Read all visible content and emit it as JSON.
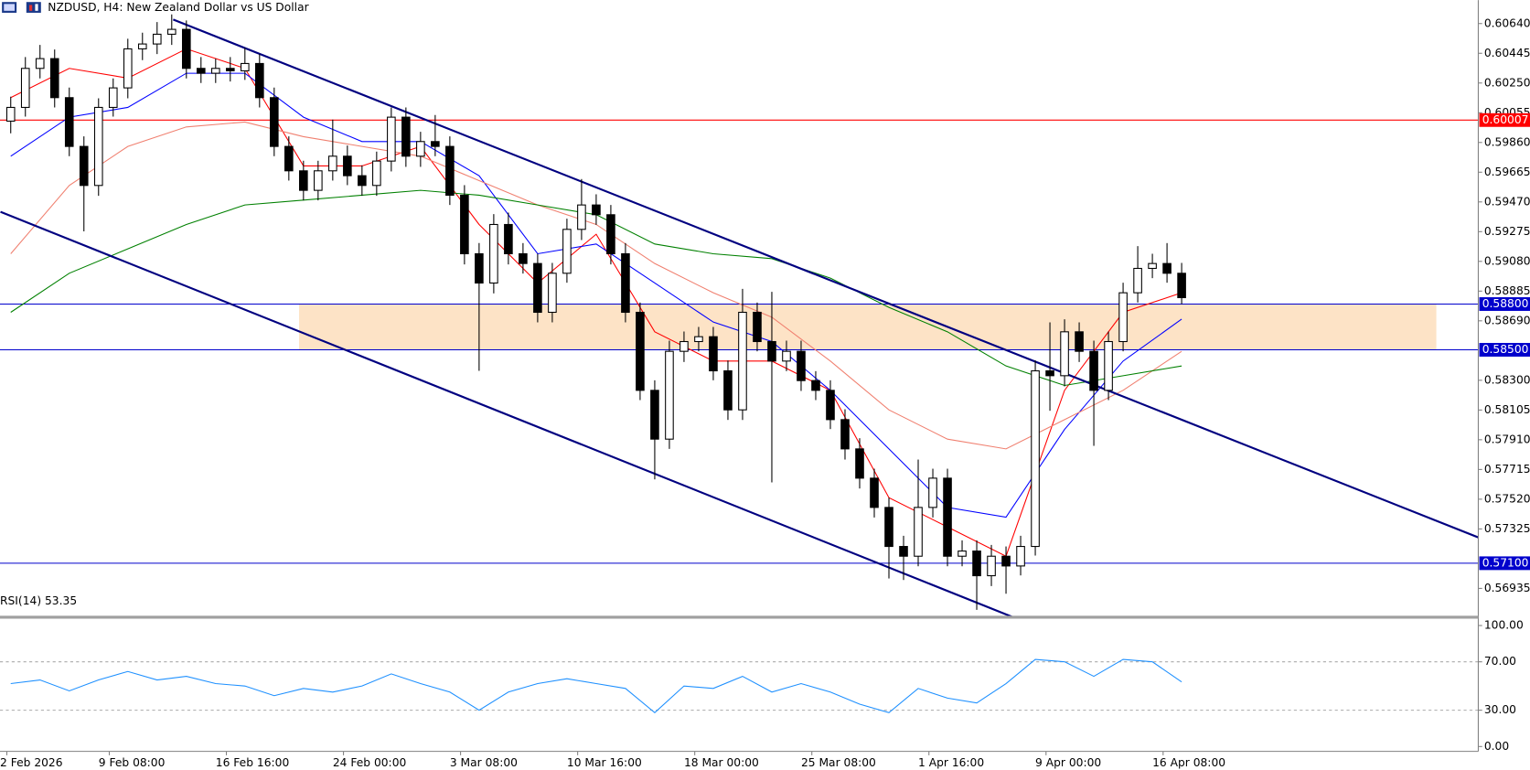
{
  "chart_data": {
    "type": "candlestick",
    "title": "NZDUSD, H4:  New Zealand Dollar vs US Dollar",
    "categories": [
      "2 Feb 2026",
      null,
      null,
      null,
      null,
      null,
      null,
      "9 Feb 08:00",
      null,
      null,
      null,
      null,
      null,
      null,
      null,
      "16 Feb 16:00",
      null,
      null,
      null,
      null,
      null,
      null,
      null,
      "24 Feb 00:00",
      null,
      null,
      null,
      null,
      null,
      null,
      null,
      "3 Mar 08:00",
      null,
      null,
      null,
      null,
      null,
      null,
      null,
      "10 Mar 16:00",
      null,
      null,
      null,
      null,
      null,
      null,
      null,
      "18 Mar 00:00",
      null,
      null,
      null,
      null,
      null,
      null,
      null,
      "25 Mar 08:00",
      null,
      null,
      null,
      null,
      null,
      null,
      null,
      "1 Apr 16:00",
      null,
      null,
      null,
      null,
      null,
      null,
      null,
      "9 Apr 00:00",
      null,
      null,
      null,
      null,
      null,
      null,
      null,
      "16 Apr 08:00",
      null
    ],
    "open": [
      0.6,
      0.6009,
      0.60346,
      0.6041,
      0.60154,
      0.59834,
      0.59578,
      0.6009,
      0.60218,
      0.60474,
      0.60506,
      0.6057,
      0.60602,
      0.60346,
      0.60314,
      0.60346,
      0.6033,
      0.60378,
      0.60154,
      0.59834,
      0.59674,
      0.59546,
      0.59674,
      0.5977,
      0.59642,
      0.59578,
      0.59738,
      0.60026,
      0.5977,
      0.59866,
      0.59834,
      0.59514,
      0.5913,
      0.58938,
      0.59322,
      0.5913,
      0.59066,
      0.58746,
      0.59002,
      0.5929,
      0.5945,
      0.59386,
      0.5913,
      0.58746,
      0.58234,
      0.57914,
      0.5849,
      0.58554,
      0.58586,
      0.58362,
      0.58106,
      0.58746,
      0.58554,
      0.58426,
      0.5849,
      0.58298,
      0.58234,
      0.58042,
      0.5785,
      0.57658,
      0.57466,
      0.5721,
      0.57146,
      0.57466,
      0.57658,
      0.57146,
      0.5718,
      0.57018,
      0.57146,
      0.57082,
      0.5721,
      0.58362,
      0.5833,
      0.58618,
      0.5849,
      0.58234,
      0.58554,
      0.58874,
      0.59034,
      0.59066,
      0.59002
    ],
    "high": [
      0.6016,
      0.6042,
      0.605,
      0.6047,
      0.6022,
      0.599,
      0.6015,
      0.6028,
      0.6054,
      0.6058,
      0.6065,
      0.607,
      0.6066,
      0.6042,
      0.6041,
      0.6042,
      0.6048,
      0.6044,
      0.6022,
      0.599,
      0.5974,
      0.5974,
      0.6001,
      0.5984,
      0.5971,
      0.598,
      0.6009,
      0.6009,
      0.5993,
      0.6004,
      0.599,
      0.5958,
      0.592,
      0.5939,
      0.594,
      0.592,
      0.5913,
      0.5907,
      0.5936,
      0.5962,
      0.5952,
      0.5945,
      0.592,
      0.5881,
      0.583,
      0.5856,
      0.5862,
      0.5865,
      0.5865,
      0.5843,
      0.589,
      0.5881,
      0.5888,
      0.5856,
      0.5856,
      0.5836,
      0.583,
      0.5811,
      0.5792,
      0.5772,
      0.5753,
      0.5728,
      0.5778,
      0.5772,
      0.5772,
      0.5725,
      0.5725,
      0.5722,
      0.5721,
      0.5728,
      0.5843,
      0.5868,
      0.587,
      0.5868,
      0.5856,
      0.5862,
      0.5894,
      0.5918,
      0.5913,
      0.592,
      0.5907
    ],
    "low": [
      0.5992,
      0.6003,
      0.6028,
      0.6009,
      0.5977,
      0.59277,
      0.5951,
      0.6003,
      0.6015,
      0.604,
      0.6044,
      0.605,
      0.6028,
      0.6025,
      0.6025,
      0.6026,
      0.6027,
      0.6009,
      0.5977,
      0.5961,
      0.5948,
      0.5948,
      0.5961,
      0.5958,
      0.5951,
      0.5951,
      0.5967,
      0.597,
      0.597,
      0.5977,
      0.5945,
      0.5906,
      0.58362,
      0.5887,
      0.5906,
      0.59,
      0.5868,
      0.5868,
      0.5894,
      0.5922,
      0.5932,
      0.5906,
      0.5868,
      0.5817,
      0.5765,
      0.5785,
      0.5842,
      0.5849,
      0.583,
      0.5804,
      0.5804,
      0.5849,
      0.5763,
      0.5836,
      0.5823,
      0.5817,
      0.5798,
      0.5778,
      0.5759,
      0.574,
      0.57,
      0.5699,
      0.5708,
      0.574,
      0.5708,
      0.5708,
      0.56794,
      0.5695,
      0.569,
      0.5702,
      0.5715,
      0.581,
      0.5826,
      0.5842,
      0.5787,
      0.5817,
      0.5849,
      0.5881,
      0.5897,
      0.5894,
      0.588
    ],
    "close": [
      0.6009,
      0.60346,
      0.6041,
      0.60154,
      0.59834,
      0.59578,
      0.6009,
      0.60218,
      0.60474,
      0.60506,
      0.6057,
      0.60602,
      0.60346,
      0.60314,
      0.60346,
      0.6033,
      0.60378,
      0.60154,
      0.59834,
      0.59674,
      0.59546,
      0.59674,
      0.5977,
      0.59642,
      0.59578,
      0.59738,
      0.60026,
      0.5977,
      0.59866,
      0.59834,
      0.59514,
      0.5913,
      0.58938,
      0.59322,
      0.5913,
      0.59066,
      0.58746,
      0.59002,
      0.5929,
      0.5945,
      0.59386,
      0.5913,
      0.58746,
      0.58234,
      0.57914,
      0.5849,
      0.58554,
      0.58586,
      0.58362,
      0.58106,
      0.58746,
      0.58554,
      0.58426,
      0.5849,
      0.58298,
      0.58234,
      0.58042,
      0.5785,
      0.57658,
      0.57466,
      0.5721,
      0.57146,
      0.57466,
      0.57658,
      0.57146,
      0.5718,
      0.57018,
      0.57146,
      0.57082,
      0.5721,
      0.58362,
      0.5833,
      0.58618,
      0.5849,
      0.58234,
      0.58554,
      0.58874,
      0.59034,
      0.59066,
      0.59002,
      0.58842
    ],
    "ylim": [
      0.56749,
      0.60794
    ],
    "yticks": [
      {
        "value": 0.6064,
        "label": "0.60640"
      },
      {
        "value": 0.60445,
        "label": "0.60445"
      },
      {
        "value": 0.6025,
        "label": "0.60250"
      },
      {
        "value": 0.60055,
        "label": "0.60055"
      },
      {
        "value": 0.5986,
        "label": "0.59860"
      },
      {
        "value": 0.59665,
        "label": "0.59665"
      },
      {
        "value": 0.5947,
        "label": "0.59470"
      },
      {
        "value": 0.59275,
        "label": "0.59275"
      },
      {
        "value": 0.5908,
        "label": "0.59080"
      },
      {
        "value": 0.58885,
        "label": "0.58885"
      },
      {
        "value": 0.5869,
        "label": "0.58690"
      },
      {
        "value": 0.583,
        "label": "0.58300"
      },
      {
        "value": 0.58105,
        "label": "0.58105"
      },
      {
        "value": 0.5791,
        "label": "0.57910"
      },
      {
        "value": 0.57715,
        "label": "0.57715"
      },
      {
        "value": 0.5752,
        "label": "0.57520"
      },
      {
        "value": 0.57325,
        "label": "0.57325"
      },
      {
        "value": 0.56935,
        "label": "0.56935"
      }
    ],
    "moving_averages": [
      {
        "color": "#ff0000",
        "x": [
          0,
          4,
          8,
          12,
          16,
          20,
          24,
          28,
          32,
          36,
          40,
          44,
          48,
          52,
          56,
          60,
          64,
          68,
          72,
          76,
          80
        ],
        "values": [
          0.60154,
          0.60346,
          0.60282,
          0.60474,
          0.60346,
          0.59706,
          0.59706,
          0.59834,
          0.59322,
          0.58938,
          0.59258,
          0.58618,
          0.58426,
          0.58426,
          0.58234,
          0.5753,
          0.57338,
          0.57146,
          0.58234,
          0.58746,
          0.58874
        ]
      },
      {
        "color": "#0000ff",
        "x": [
          0,
          4,
          8,
          12,
          16,
          20,
          24,
          28,
          32,
          36,
          40,
          44,
          48,
          52,
          56,
          60,
          64,
          68,
          72,
          76,
          80
        ],
        "values": [
          0.5977,
          0.60026,
          0.6009,
          0.60314,
          0.60314,
          0.60026,
          0.59866,
          0.59866,
          0.59642,
          0.5913,
          0.59194,
          0.58938,
          0.58682,
          0.58554,
          0.58234,
          0.5785,
          0.57466,
          0.57402,
          0.57978,
          0.58426,
          0.58701
        ]
      },
      {
        "color": "#f08070",
        "x": [
          0,
          4,
          8,
          12,
          16,
          20,
          24,
          28,
          32,
          36,
          40,
          44,
          48,
          52,
          56,
          60,
          64,
          68,
          72,
          76,
          80
        ],
        "values": [
          0.5913,
          0.59578,
          0.59834,
          0.59962,
          0.59994,
          0.59898,
          0.59834,
          0.5977,
          0.5961,
          0.5945,
          0.59322,
          0.59066,
          0.58874,
          0.58714,
          0.58426,
          0.58106,
          0.57914,
          0.5785,
          0.58042,
          0.58234,
          0.5849
        ]
      },
      {
        "color": "#008000",
        "x": [
          0,
          4,
          8,
          12,
          16,
          20,
          24,
          28,
          32,
          36,
          40,
          44,
          48,
          52,
          56,
          60,
          64,
          68,
          72,
          76,
          80
        ],
        "values": [
          0.58746,
          0.59002,
          0.59162,
          0.59322,
          0.5945,
          0.59482,
          0.59514,
          0.59546,
          0.59514,
          0.5945,
          0.59386,
          0.59194,
          0.5913,
          0.59098,
          0.5897,
          0.58778,
          0.58618,
          0.58394,
          0.58266,
          0.5833,
          0.58394
        ]
      }
    ],
    "levels": [
      {
        "value": 0.60007,
        "label": "0.60007",
        "color": "#ff0000"
      },
      {
        "value": 0.588,
        "label": "0.58800",
        "color": "#0000cc"
      },
      {
        "value": 0.585,
        "label": "0.58500",
        "color": "#0000cc"
      },
      {
        "value": 0.571,
        "label": "0.57100",
        "color": "#0000cc"
      }
    ],
    "zone": {
      "x": [
        19.7,
        97.4
      ],
      "y": [
        0.585,
        0.588
      ],
      "color": "#fde3c6"
    },
    "trendlines": [
      {
        "color": "#000080",
        "x": [
          11.1,
          100.3
        ],
        "y": [
          0.60666,
          0.57268
        ]
      },
      {
        "color": "#000080",
        "x": [
          -0.7,
          68.4
        ],
        "y": [
          0.59405,
          0.56749
        ]
      }
    ],
    "indicator": {
      "type": "line",
      "title": "RSI(14) 53.35",
      "color": "#1e90ff",
      "ylim": [
        0,
        100
      ],
      "yticks": [
        {
          "value": 100,
          "label": "100.00"
        },
        {
          "value": 70,
          "label": "70.00"
        },
        {
          "value": 30,
          "label": "30.00"
        },
        {
          "value": 0,
          "label": "0.00"
        }
      ],
      "grid_dashed": true,
      "x": [
        0,
        2,
        4,
        6,
        8,
        10,
        12,
        14,
        16,
        18,
        20,
        22,
        24,
        26,
        28,
        30,
        32,
        34,
        36,
        38,
        40,
        42,
        44,
        46,
        48,
        50,
        52,
        54,
        56,
        58,
        60,
        62,
        64,
        66,
        68,
        70,
        72,
        74,
        76,
        78,
        80
      ],
      "values": [
        52,
        55,
        46,
        55,
        62,
        55,
        58,
        52,
        50,
        42,
        48,
        45,
        50,
        60,
        52,
        45,
        30,
        45,
        52,
        56,
        52,
        48,
        28,
        50,
        48,
        58,
        45,
        52,
        45,
        35,
        28,
        48,
        40,
        36,
        52,
        72,
        70,
        58,
        72,
        70,
        53.35
      ]
    }
  }
}
